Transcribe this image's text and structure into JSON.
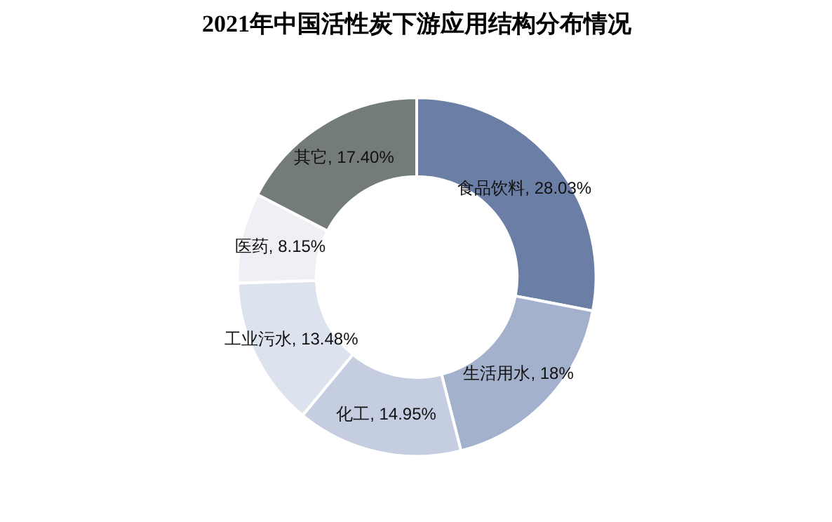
{
  "chart_data": {
    "type": "donut",
    "title": "2021年中国活性炭下游应用结构分布情况",
    "categories": [
      "食品饮料",
      "生活用水",
      "化工",
      "工业污水",
      "医药",
      "其它"
    ],
    "values": [
      28.03,
      18,
      14.95,
      13.48,
      8.15,
      17.4
    ],
    "value_labels": [
      "28.03%",
      "18%",
      "14.95%",
      "13.48%",
      "8.15%",
      "17.40%"
    ],
    "colors": [
      "#6b7ea6",
      "#a4b1cc",
      "#c5cde0",
      "#dde3ee",
      "#eef0f5",
      "#747c77"
    ],
    "legend": false
  }
}
